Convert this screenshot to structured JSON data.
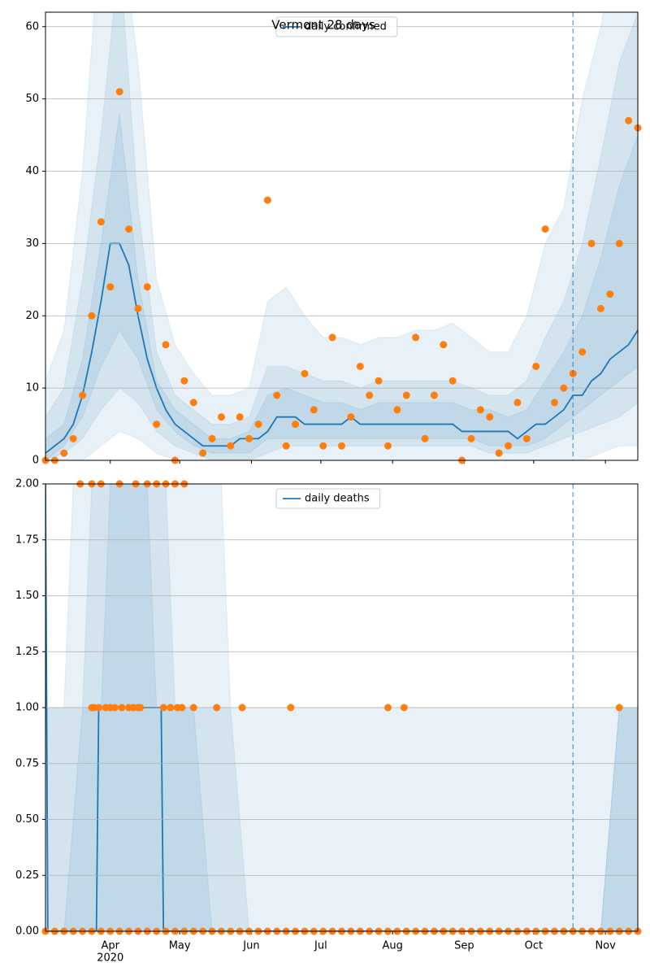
{
  "chart_data": [
    {
      "type": "line",
      "title": "Vermont 28 days",
      "legend": "upper center",
      "grid": true,
      "vline_x": 292,
      "xlim": [
        64,
        320
      ],
      "ylim": [
        0,
        62
      ],
      "yticks": [
        0,
        10,
        20,
        30,
        40,
        50,
        60
      ],
      "band_color": "#1f77b4",
      "band_x": [
        64,
        72,
        80,
        88,
        96,
        104,
        112,
        120,
        128,
        136,
        144,
        152,
        160,
        168,
        176,
        184,
        192,
        200,
        208,
        216,
        224,
        232,
        240,
        248,
        256,
        264,
        272,
        280,
        288,
        296,
        304,
        312,
        320
      ],
      "bands": [
        {
          "lower": [
            0,
            0,
            0,
            2,
            4,
            3,
            1,
            0,
            0,
            0,
            0,
            0,
            0,
            0,
            0,
            0,
            0,
            0,
            0,
            0,
            0,
            0,
            0,
            0,
            0,
            0,
            0,
            0,
            0,
            0,
            1,
            2,
            2
          ],
          "upper": [
            11,
            18,
            40,
            75,
            75,
            55,
            25,
            16,
            12,
            9,
            9,
            10,
            22,
            24,
            20,
            17,
            17,
            16,
            17,
            17,
            18,
            18,
            19,
            17,
            15,
            15,
            20,
            30,
            35,
            50,
            60,
            75,
            75
          ]
        },
        {
          "lower": [
            0,
            1,
            3,
            7,
            10,
            8,
            4,
            2,
            1,
            0,
            0,
            0,
            1,
            2,
            2,
            2,
            2,
            2,
            2,
            2,
            2,
            2,
            2,
            2,
            1,
            1,
            1,
            2,
            3,
            4,
            5,
            6,
            8
          ],
          "upper": [
            6,
            10,
            25,
            45,
            70,
            35,
            15,
            9,
            7,
            5,
            5,
            6,
            13,
            13,
            12,
            11,
            11,
            10,
            11,
            11,
            11,
            11,
            11,
            10,
            9,
            9,
            11,
            17,
            22,
            30,
            42,
            55,
            62
          ]
        },
        {
          "lower": [
            0,
            2,
            6,
            13,
            18,
            14,
            7,
            4,
            2,
            1,
            1,
            1,
            3,
            3,
            3,
            3,
            3,
            3,
            3,
            3,
            3,
            3,
            3,
            3,
            2,
            2,
            2,
            3,
            5,
            7,
            9,
            11,
            13
          ],
          "upper": [
            3,
            5,
            14,
            30,
            48,
            25,
            11,
            7,
            5,
            3,
            3,
            4,
            9,
            10,
            9,
            8,
            8,
            7,
            8,
            8,
            8,
            8,
            8,
            7,
            7,
            6,
            7,
            11,
            15,
            20,
            28,
            38,
            45
          ]
        }
      ],
      "series": [
        {
          "name": "daily confirmed",
          "type": "line",
          "color": "#1f77b4",
          "x": [
            64,
            68,
            72,
            76,
            80,
            84,
            88,
            92,
            96,
            100,
            104,
            108,
            112,
            116,
            120,
            124,
            128,
            132,
            136,
            140,
            144,
            148,
            152,
            156,
            160,
            164,
            168,
            172,
            176,
            180,
            184,
            188,
            192,
            196,
            200,
            204,
            208,
            212,
            216,
            220,
            224,
            228,
            232,
            236,
            240,
            244,
            248,
            252,
            256,
            260,
            264,
            268,
            272,
            276,
            280,
            284,
            288,
            292,
            296,
            300,
            304,
            308,
            312,
            316,
            320
          ],
          "values": [
            1,
            2,
            3,
            5,
            9,
            15,
            22,
            30,
            30,
            27,
            20,
            14,
            10,
            7,
            5,
            4,
            3,
            2,
            2,
            2,
            2,
            3,
            3,
            3,
            4,
            6,
            6,
            6,
            5,
            5,
            5,
            5,
            5,
            6,
            5,
            5,
            5,
            5,
            5,
            5,
            5,
            5,
            5,
            5,
            5,
            4,
            4,
            4,
            4,
            4,
            4,
            3,
            4,
            5,
            5,
            6,
            7,
            9,
            9,
            11,
            12,
            14,
            15,
            16,
            18
          ]
        },
        {
          "type": "scatter",
          "color": "#ff7f0e",
          "x": [
            64,
            68,
            72,
            76,
            80,
            84,
            88,
            92,
            96,
            100,
            104,
            108,
            112,
            116,
            120,
            124,
            128,
            132,
            136,
            140,
            144,
            148,
            152,
            156,
            160,
            164,
            168,
            172,
            176,
            180,
            184,
            188,
            192,
            196,
            200,
            204,
            208,
            212,
            216,
            220,
            224,
            228,
            232,
            236,
            240,
            244,
            248,
            252,
            256,
            260,
            264,
            268,
            272,
            276,
            280,
            284,
            288,
            292,
            296,
            300,
            304,
            308,
            312,
            316,
            320
          ],
          "values": [
            0,
            0,
            1,
            3,
            9,
            20,
            33,
            24,
            51,
            32,
            21,
            24,
            5,
            16,
            0,
            11,
            8,
            1,
            3,
            6,
            2,
            6,
            3,
            5,
            36,
            9,
            2,
            5,
            12,
            7,
            2,
            17,
            2,
            6,
            13,
            9,
            11,
            2,
            7,
            9,
            17,
            3,
            9,
            16,
            11,
            0,
            3,
            7,
            6,
            1,
            2,
            8,
            3,
            13,
            32,
            8,
            10,
            12,
            15,
            30,
            21,
            23,
            30,
            47,
            46
          ]
        }
      ]
    },
    {
      "type": "line",
      "legend": "upper center",
      "grid": true,
      "vline_x": 292,
      "xlim": [
        64,
        320
      ],
      "ylim": [
        0,
        2
      ],
      "yticks": [
        {
          "value": 0,
          "label": "0.00"
        },
        {
          "value": 0.25,
          "label": "0.25"
        },
        {
          "value": 0.5,
          "label": "0.50"
        },
        {
          "value": 0.75,
          "label": "0.75"
        },
        {
          "value": 1,
          "label": "1.00"
        },
        {
          "value": 1.25,
          "label": "1.25"
        },
        {
          "value": 1.5,
          "label": "1.50"
        },
        {
          "value": 1.75,
          "label": "1.75"
        },
        {
          "value": 2,
          "label": "2.00"
        }
      ],
      "xticks": [
        {
          "value": 92,
          "label": "Apr"
        },
        {
          "value": 122,
          "label": "May"
        },
        {
          "value": 153,
          "label": "Jun"
        },
        {
          "value": 183,
          "label": "Jul"
        },
        {
          "value": 214,
          "label": "Aug"
        },
        {
          "value": 245,
          "label": "Sep"
        },
        {
          "value": 275,
          "label": "Oct"
        },
        {
          "value": 306,
          "label": "Nov"
        }
      ],
      "year_label": "2020",
      "band_color": "#1f77b4",
      "band_x": [
        64,
        72,
        80,
        88,
        96,
        104,
        112,
        120,
        128,
        136,
        144,
        152,
        160,
        168,
        176,
        184,
        192,
        200,
        208,
        216,
        224,
        232,
        240,
        248,
        256,
        264,
        272,
        280,
        288,
        296,
        304,
        312,
        320
      ],
      "bands": [
        {
          "lower": [
            0,
            0,
            0,
            0,
            0,
            0,
            0,
            0,
            0,
            0,
            0,
            0,
            0,
            0,
            0,
            0,
            0,
            0,
            0,
            0,
            0,
            0,
            0,
            0,
            0,
            0,
            0,
            0,
            0,
            0,
            0,
            0,
            0
          ],
          "upper": [
            1,
            1,
            3,
            3,
            3,
            3,
            3,
            3,
            3,
            3,
            1,
            1,
            1,
            1,
            1,
            1,
            1,
            1,
            1,
            1,
            1,
            1,
            1,
            1,
            1,
            1,
            1,
            1,
            1,
            1,
            1,
            1,
            1
          ]
        },
        {
          "lower": [
            0,
            0,
            0,
            0,
            0,
            0,
            0,
            0,
            0,
            0,
            0,
            0,
            0,
            0,
            0,
            0,
            0,
            0,
            0,
            0,
            0,
            0,
            0,
            0,
            0,
            0,
            0,
            0,
            0,
            0,
            0,
            0,
            0
          ],
          "upper": [
            1,
            1,
            1,
            3,
            3,
            3,
            3,
            1,
            1,
            1,
            1,
            0,
            0,
            0,
            0,
            0,
            0,
            0,
            0,
            0,
            0,
            0,
            0,
            0,
            0,
            0,
            0,
            0,
            0,
            0,
            0,
            1,
            1
          ]
        },
        {
          "lower": [
            0,
            0,
            0,
            0,
            0,
            0,
            0,
            0,
            0,
            0,
            0,
            0,
            0,
            0,
            0,
            0,
            0,
            0,
            0,
            0,
            0,
            0,
            0,
            0,
            0,
            0,
            0,
            0,
            0,
            0,
            0,
            0,
            0
          ],
          "upper": [
            0,
            0,
            1,
            1,
            3,
            3,
            1,
            1,
            1,
            0,
            0,
            0,
            0,
            0,
            0,
            0,
            0,
            0,
            0,
            0,
            0,
            0,
            0,
            0,
            0,
            0,
            0,
            0,
            0,
            0,
            0,
            1,
            1
          ]
        }
      ],
      "series": [
        {
          "name": "daily deaths",
          "type": "line",
          "color": "#1f77b4",
          "x": [
            64,
            65,
            86,
            87,
            114,
            115,
            320
          ],
          "values": [
            2,
            0,
            0,
            1,
            1,
            0,
            0
          ]
        },
        {
          "type": "scatter",
          "color": "#ff7f0e",
          "x": [
            64,
            68,
            72,
            76,
            80,
            84,
            88,
            92,
            96,
            100,
            104,
            108,
            112,
            116,
            120,
            124,
            128,
            132,
            136,
            140,
            144,
            148,
            152,
            156,
            160,
            164,
            168,
            172,
            176,
            180,
            184,
            188,
            192,
            196,
            200,
            204,
            208,
            212,
            216,
            220,
            224,
            228,
            232,
            236,
            240,
            244,
            248,
            252,
            256,
            260,
            264,
            268,
            272,
            276,
            280,
            284,
            288,
            292,
            296,
            300,
            304,
            308,
            312,
            316,
            320,
            79,
            84,
            88,
            96,
            103,
            108,
            112,
            116,
            120,
            124,
            84,
            85,
            87,
            90,
            92,
            94,
            97,
            100,
            102,
            104,
            105,
            115,
            118,
            121,
            123,
            128,
            138,
            149,
            170,
            212,
            219,
            312
          ],
          "values": [
            0,
            0,
            0,
            0,
            0,
            0,
            0,
            0,
            0,
            0,
            0,
            0,
            0,
            0,
            0,
            0,
            0,
            0,
            0,
            0,
            0,
            0,
            0,
            0,
            0,
            0,
            0,
            0,
            0,
            0,
            0,
            0,
            0,
            0,
            0,
            0,
            0,
            0,
            0,
            0,
            0,
            0,
            0,
            0,
            0,
            0,
            0,
            0,
            0,
            0,
            0,
            0,
            0,
            0,
            0,
            0,
            0,
            0,
            0,
            0,
            0,
            0,
            0,
            0,
            0,
            2,
            2,
            2,
            2,
            2,
            2,
            2,
            2,
            2,
            2,
            1,
            1,
            1,
            1,
            1,
            1,
            1,
            1,
            1,
            1,
            1,
            1,
            1,
            1,
            1,
            1,
            1,
            1,
            1,
            1,
            1,
            1
          ]
        }
      ]
    }
  ]
}
